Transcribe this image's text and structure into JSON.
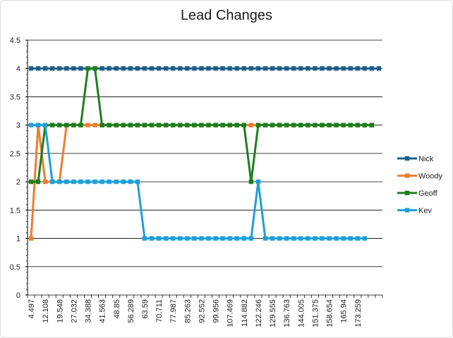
{
  "chart_data": {
    "type": "line",
    "title": "Lead Changes",
    "xlabel": "",
    "ylabel": "",
    "ylim": [
      0,
      4.5
    ],
    "y_ticks": [
      "0",
      "0.5",
      "1",
      "1.5",
      "2",
      "2.5",
      "3",
      "3.5",
      "4",
      "4.5"
    ],
    "x_tick_labels": [
      "4.497",
      "12.108",
      "19.548",
      "27.032",
      "34.388",
      "41.563",
      "48.85",
      "56.289",
      "63.59",
      "70.711",
      "77.987",
      "85.263",
      "92.552",
      "99.956",
      "107.469",
      "114.882",
      "122.246",
      "129.555",
      "136.763",
      "144.005",
      "151.375",
      "158.654",
      "165.94",
      "173.259"
    ],
    "grid": "horizontal",
    "legend_position": "right",
    "series": [
      {
        "name": "Nick",
        "color": "#1f5f8b",
        "values": [
          4,
          4,
          4,
          4,
          4,
          4,
          4,
          4,
          4,
          4,
          4,
          4,
          4,
          4,
          4,
          4,
          4,
          4,
          4,
          4,
          4,
          4,
          4,
          4,
          4,
          4,
          4,
          4,
          4,
          4,
          4,
          4,
          4,
          4,
          4,
          4,
          4,
          4,
          4,
          4,
          4,
          4,
          4,
          4,
          4,
          4,
          4,
          4,
          4,
          4
        ]
      },
      {
        "name": "Woody",
        "color": "#ed7d31",
        "values": [
          1,
          3,
          2,
          2,
          2,
          3,
          3,
          3,
          3,
          3,
          3,
          3,
          3,
          3,
          3,
          3,
          3,
          3,
          3,
          3,
          3,
          3,
          3,
          3,
          3,
          3,
          3,
          3,
          3,
          3,
          3,
          3,
          3,
          3,
          3,
          3,
          3,
          3,
          3,
          3,
          3,
          3,
          3,
          3,
          3,
          3,
          3,
          3,
          3
        ]
      },
      {
        "name": "Geoff",
        "color": "#1e7e1e",
        "values": [
          2,
          2,
          3,
          3,
          3,
          3,
          3,
          3,
          4,
          4,
          3,
          3,
          3,
          3,
          3,
          3,
          3,
          3,
          3,
          3,
          3,
          3,
          3,
          3,
          3,
          3,
          3,
          3,
          3,
          3,
          3,
          2,
          3,
          3,
          3,
          3,
          3,
          3,
          3,
          3,
          3,
          3,
          3,
          3,
          3,
          3,
          3,
          3,
          3
        ]
      },
      {
        "name": "Kev",
        "color": "#1ea0d8",
        "values": [
          3,
          3,
          3,
          2,
          2,
          2,
          2,
          2,
          2,
          2,
          2,
          2,
          2,
          2,
          2,
          2,
          1,
          1,
          1,
          1,
          1,
          1,
          1,
          1,
          1,
          1,
          1,
          1,
          1,
          1,
          1,
          1,
          2,
          1,
          1,
          1,
          1,
          1,
          1,
          1,
          1,
          1,
          1,
          1,
          1,
          1,
          1,
          1
        ]
      }
    ]
  }
}
